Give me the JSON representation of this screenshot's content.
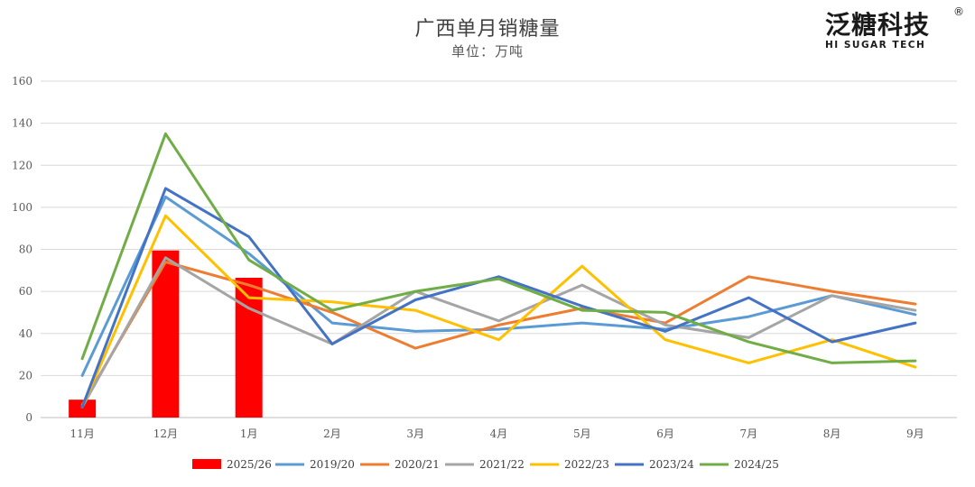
{
  "chart_data": {
    "type": "bar+line",
    "title": "广西单月销糖量",
    "subtitle": "单位：万吨",
    "categories": [
      "11月",
      "12月",
      "1月",
      "2月",
      "3月",
      "4月",
      "5月",
      "6月",
      "7月",
      "8月",
      "9月"
    ],
    "ylim": [
      0,
      160
    ],
    "yticks": [
      0,
      20,
      40,
      60,
      80,
      100,
      120,
      140,
      160
    ],
    "grid": "horizontal",
    "legend_position": "bottom",
    "bar_series": {
      "name": "2025/26",
      "color": "#ff0000",
      "values": [
        8.5,
        79.5,
        66.5,
        null,
        null,
        null,
        null,
        null,
        null,
        null,
        null
      ]
    },
    "series": [
      {
        "name": "2019/20",
        "color": "#5b9bd5",
        "values": [
          20,
          105,
          78,
          45,
          41,
          42,
          45,
          42,
          48,
          58,
          49
        ]
      },
      {
        "name": "2020/21",
        "color": "#ed7d31",
        "values": [
          6,
          74,
          63,
          50,
          33,
          44,
          52,
          45,
          67,
          60,
          54
        ]
      },
      {
        "name": "2021/22",
        "color": "#a5a5a5",
        "values": [
          5,
          76,
          52,
          35,
          60,
          46,
          63,
          44,
          38,
          58,
          51
        ]
      },
      {
        "name": "2022/23",
        "color": "#ffc000",
        "values": [
          5,
          96,
          57,
          55,
          51,
          37,
          72,
          37,
          26,
          37,
          24
        ]
      },
      {
        "name": "2023/24",
        "color": "#4472c4",
        "values": [
          5,
          109,
          86,
          35,
          56,
          67,
          53,
          41,
          57,
          36,
          45
        ]
      },
      {
        "name": "2024/25",
        "color": "#70ad47",
        "values": [
          28,
          135,
          75,
          51,
          60,
          66,
          51,
          50,
          36,
          26,
          27
        ]
      }
    ]
  },
  "brand": {
    "name": "泛糖科技",
    "tagline": "HI SUGAR TECH",
    "registered_mark": "®"
  }
}
